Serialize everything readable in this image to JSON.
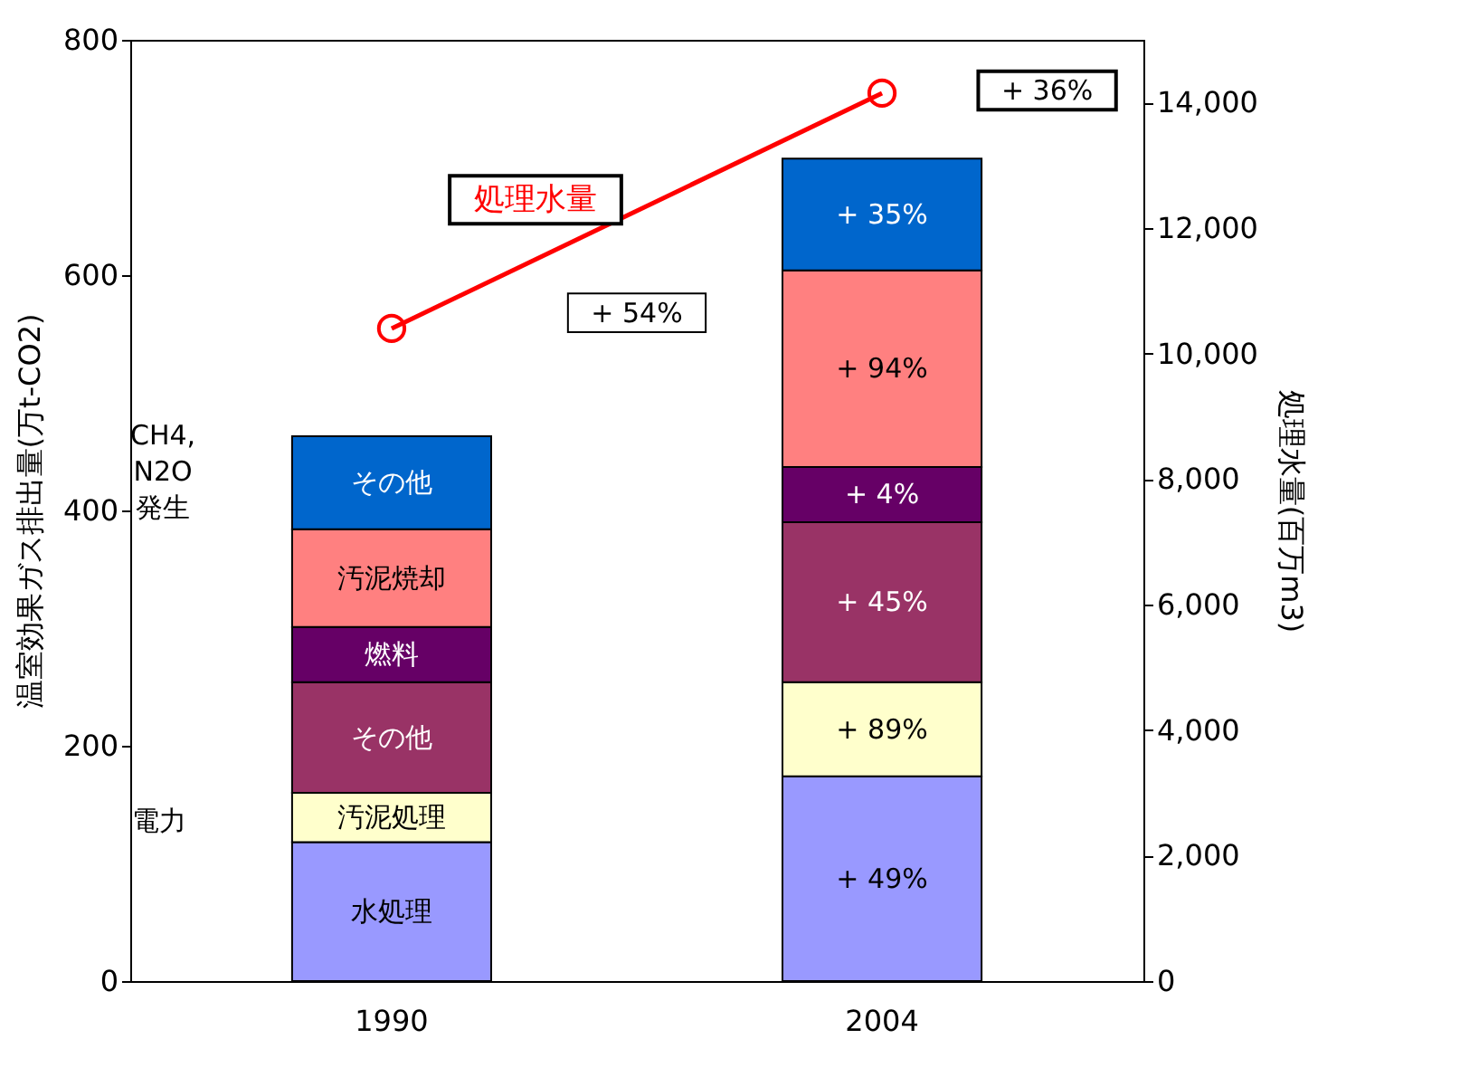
{
  "chart_data": {
    "type": "bar",
    "stacked": true,
    "ylabel": "温室効果ガス排出量(万t-CO2)",
    "y2label": "処理水量(百万m3)",
    "categories": [
      "1990",
      "2004"
    ],
    "ylim": [
      0,
      800
    ],
    "yticks": [
      0,
      200,
      400,
      600,
      800
    ],
    "y2lim": [
      0,
      15000
    ],
    "y2ticks": [
      0,
      {
        "value": 2000,
        "label": "2,000"
      },
      {
        "value": 4000,
        "label": "4,000"
      },
      {
        "value": 6000,
        "label": "6,000"
      },
      {
        "value": 8000,
        "label": "8,000"
      },
      {
        "value": 10000,
        "label": "10,000"
      },
      {
        "value": 12000,
        "label": "12,000"
      },
      {
        "value": 14000,
        "label": "14,000"
      }
    ],
    "grid": false,
    "legend": false,
    "series": [
      {
        "name": "水処理",
        "color": "#9999ff",
        "values": [
          118,
          174
        ]
      },
      {
        "name": "汚泥処理",
        "color": "#ffffcc",
        "values": [
          42,
          80
        ]
      },
      {
        "name": "その他",
        "color": "#993366",
        "values": [
          94,
          136
        ]
      },
      {
        "name": "燃料",
        "color": "#660066",
        "values": [
          47,
          47
        ]
      },
      {
        "name": "汚泥焼却",
        "color": "#ff8080",
        "values": [
          83,
          167
        ]
      },
      {
        "name": "その他",
        "color": "#0066cc",
        "values": [
          79,
          95
        ]
      },
      {
        "name": "処理水量",
        "type": "line",
        "axis": "y2",
        "color": "#ff0000",
        "marker": "circle",
        "values": [
          10400,
          14150
        ]
      }
    ],
    "annotations": [
      "+ 49%",
      "+ 89%",
      "+ 45%",
      "+ 4%",
      "+ 94%",
      "+ 35%",
      "+ 36%",
      "+ 54%",
      "電力",
      "CH4,\nN2O\n発生"
    ]
  }
}
